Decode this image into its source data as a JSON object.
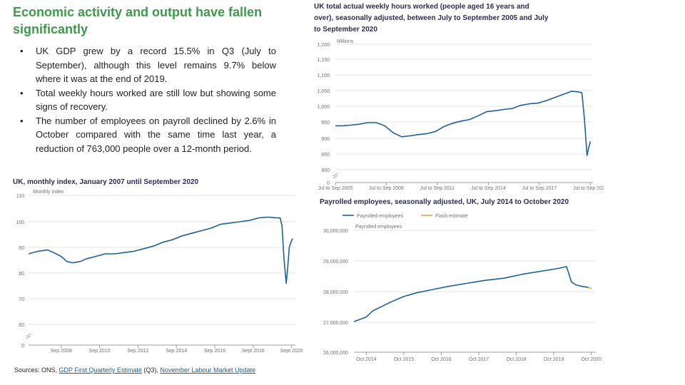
{
  "slide": {
    "title": "Economic activity and output have fallen significantly",
    "bullets": [
      "UK GDP grew by a record 15.5% in Q3 (July to September), although this level remains 9.7% below where it was at the end of 2019.",
      "Total weekly hours worked are still low but showing some signs of recovery.",
      "The number of employees on payroll declined by 2.6% in October compared with the same time last year, a reduction of 763,000 people over a 12-month period."
    ],
    "source_prefix": "Sources: ONS, ",
    "source_link1": "GDP First Quarterly Estimate",
    "source_mid": " (Q3), ",
    "source_link2": "November Labour Market Update"
  },
  "chart_data": [
    {
      "id": "gdp",
      "type": "line",
      "title": "UK, monthly index, January 2007 until September 2020",
      "ylabel": "Monthly index",
      "ylim": [
        0,
        110
      ],
      "yticks": [
        "0",
        "60",
        "70",
        "80",
        "90",
        "100",
        "110"
      ],
      "xticks": [
        "Sep 2008",
        "Sep 2010",
        "Sep 2012",
        "Sep 2014",
        "Sep 2016",
        "Sept 2018",
        "Sept 2020"
      ],
      "series": [
        {
          "name": "GDP index",
          "color": "#206095",
          "x": [
            2007.0,
            2007.5,
            2008.0,
            2008.3,
            2008.7,
            2009.0,
            2009.3,
            2009.7,
            2010.0,
            2010.5,
            2011.0,
            2011.5,
            2012.0,
            2012.5,
            2013.0,
            2013.5,
            2014.0,
            2014.5,
            2015.0,
            2015.5,
            2016.0,
            2016.5,
            2017.0,
            2017.5,
            2018.0,
            2018.5,
            2019.0,
            2019.5,
            2019.9,
            2020.1,
            2020.2,
            2020.3,
            2020.42,
            2020.5,
            2020.58,
            2020.67,
            2020.75
          ],
          "values": [
            87.5,
            88.5,
            89.0,
            88.0,
            86.5,
            84.5,
            84.0,
            84.5,
            85.5,
            86.5,
            87.5,
            87.5,
            88.0,
            88.5,
            89.5,
            90.5,
            92.0,
            93.0,
            94.5,
            95.5,
            96.5,
            97.5,
            99.0,
            99.5,
            100.0,
            100.5,
            101.5,
            101.8,
            101.5,
            101.5,
            98.5,
            86.0,
            76.0,
            82.0,
            90.0,
            92.0,
            93.5
          ]
        }
      ]
    },
    {
      "id": "hours",
      "type": "line",
      "title": "UK total actual weekly hours worked (people aged 16 years and over), seasonally adjusted, between July to September 2005 and July to September 2020",
      "ylabel": "Millions",
      "ylim": [
        0,
        1200
      ],
      "yticks": [
        "0",
        "800",
        "850",
        "900",
        "950",
        "1,000",
        "1,050",
        "1,100",
        "1,150",
        "1,200"
      ],
      "xticks": [
        "Jul to Sep 2005",
        "Jul to Sep 2008",
        "Jul to Sep 2011",
        "Jul to Sep 2014",
        "Jul to Sep 2017",
        "Jul to Sep 2020"
      ],
      "series": [
        {
          "name": "Weekly hours",
          "color": "#206095",
          "x": [
            2005.6,
            2006.0,
            2006.5,
            2007.0,
            2007.5,
            2008.0,
            2008.5,
            2009.0,
            2009.5,
            2010.0,
            2010.5,
            2011.0,
            2011.5,
            2012.0,
            2012.5,
            2013.0,
            2013.5,
            2014.0,
            2014.5,
            2015.0,
            2015.5,
            2016.0,
            2016.5,
            2017.0,
            2017.5,
            2018.0,
            2018.5,
            2019.0,
            2019.5,
            2019.9,
            2020.1,
            2020.25,
            2020.4,
            2020.5,
            2020.6
          ],
          "values": [
            940,
            940,
            942,
            945,
            950,
            950,
            940,
            918,
            905,
            908,
            912,
            915,
            922,
            938,
            948,
            955,
            960,
            972,
            985,
            988,
            992,
            995,
            1005,
            1010,
            1012,
            1020,
            1030,
            1040,
            1050,
            1048,
            1045,
            960,
            845,
            870,
            890
          ]
        }
      ]
    },
    {
      "id": "payroll",
      "type": "line",
      "title": "Payrolled employees, seasonally adjusted, UK, July 2014 to October 2020",
      "ylabel": "Payrolled employees",
      "ylim": [
        26000000,
        30000000
      ],
      "yticks": [
        "26,000,000",
        "27,000,000",
        "28,000,000",
        "29,000,000",
        "30,000,000"
      ],
      "xticks": [
        "Oct 2014",
        "Oct 2015",
        "Oct 2016",
        "Oct 2017",
        "Oct 2018",
        "Oct 2019",
        "Oct 2020"
      ],
      "legend": [
        "Payrolled employees",
        "Flash estimate"
      ],
      "series": [
        {
          "name": "Payrolled employees",
          "color": "#206095",
          "x": [
            2014.5,
            2014.83,
            2015.0,
            2015.5,
            2015.83,
            2016.2,
            2016.6,
            2017.0,
            2017.5,
            2018.0,
            2018.5,
            2019.0,
            2019.5,
            2020.0,
            2020.17,
            2020.3,
            2020.42,
            2020.6,
            2020.75
          ],
          "values": [
            27000000,
            27150000,
            27350000,
            27650000,
            27820000,
            27950000,
            28050000,
            28150000,
            28250000,
            28350000,
            28420000,
            28550000,
            28650000,
            28750000,
            28800000,
            28300000,
            28200000,
            28150000,
            28120000
          ]
        },
        {
          "name": "Flash estimate",
          "color": "#e8a540",
          "x": [
            2020.75,
            2020.83
          ],
          "values": [
            28120000,
            28080000
          ]
        }
      ]
    }
  ]
}
